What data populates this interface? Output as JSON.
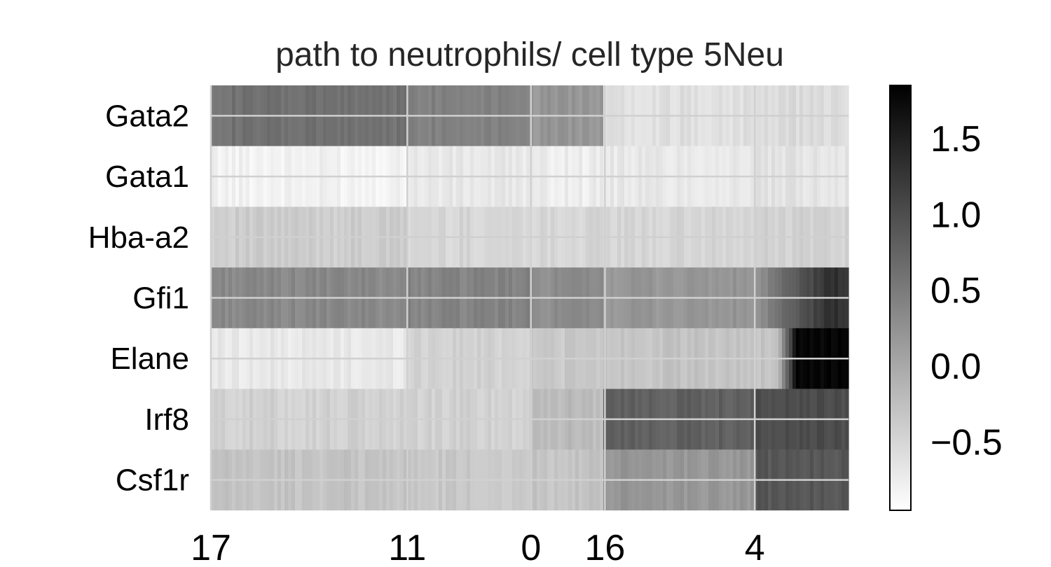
{
  "chart_data": {
    "type": "heatmap",
    "title": "path to neutrophils/ cell type 5Neu",
    "colormap": "grayscale (white = low, black = high)",
    "grid": true,
    "genes": [
      "Gata2",
      "Gata1",
      "Hba-a2",
      "Gfi1",
      "Elane",
      "Irf8",
      "Csf1r"
    ],
    "x_tick_labels": [
      "17",
      "11",
      "0",
      "16",
      "4"
    ],
    "x_ticks_relative": [
      0.0,
      0.308,
      0.502,
      0.618,
      0.853
    ],
    "segment_boundaries": [
      0.0,
      0.308,
      0.502,
      0.618,
      0.853,
      1.0
    ],
    "segments": [
      "17",
      "11",
      "0",
      "16",
      "4"
    ],
    "segment_values": {
      "Gata2": [
        0.6,
        0.45,
        0.2,
        -0.6,
        -0.55
      ],
      "Gata1": [
        -0.8,
        -0.7,
        -0.75,
        -0.7,
        -0.65
      ],
      "Hba-a2": [
        -0.4,
        -0.5,
        -0.5,
        -0.5,
        -0.45
      ],
      "Gfi1": [
        0.35,
        0.4,
        0.3,
        0.2,
        1.3
      ],
      "Elane": [
        -0.7,
        -0.45,
        -0.35,
        -0.3,
        1.8
      ],
      "Irf8": [
        -0.45,
        -0.45,
        -0.2,
        0.8,
        1.0
      ],
      "Csf1r": [
        -0.3,
        -0.35,
        -0.3,
        0.2,
        0.9
      ]
    },
    "colorbar": {
      "ticks": [
        "1.5",
        "1.0",
        "0.5",
        "0.0",
        "−0.5"
      ],
      "tick_values": [
        1.5,
        1.0,
        0.5,
        0.0,
        -0.5
      ],
      "range": [
        -0.95,
        1.85
      ]
    }
  }
}
